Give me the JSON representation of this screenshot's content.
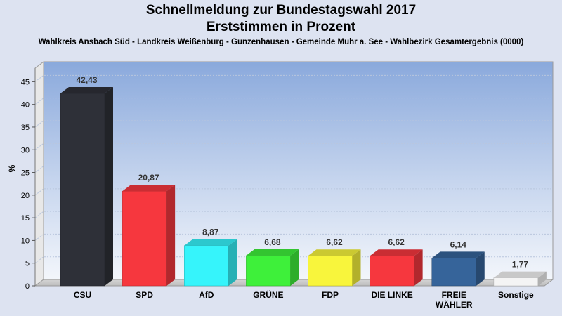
{
  "title": "Schnellmeldung zur Bundestagswahl 2017",
  "title_line2": "Erststimmen in Prozent",
  "subtitle": "Wahlkreis Ansbach Süd - Landkreis Weißenburg - Gunzenhausen - Gemeinde Muhr a. See - Wahlbezirk Gesamtergebnis (0000)",
  "chart_data": {
    "type": "bar",
    "title": "Schnellmeldung zur Bundestagswahl 2017",
    "subtitle": "Erststimmen in Prozent",
    "ylabel": "%",
    "xlabel": "",
    "ylim": [
      0,
      48
    ],
    "yticks": [
      0,
      5,
      10,
      15,
      20,
      25,
      30,
      35,
      40,
      45
    ],
    "grid": true,
    "categories": [
      {
        "lines": [
          "CSU"
        ]
      },
      {
        "lines": [
          "SPD"
        ]
      },
      {
        "lines": [
          "AfD"
        ]
      },
      {
        "lines": [
          "GRÜNE"
        ]
      },
      {
        "lines": [
          "FDP"
        ]
      },
      {
        "lines": [
          "DIE LINKE"
        ]
      },
      {
        "lines": [
          "FREIE",
          "WÄHLER"
        ]
      },
      {
        "lines": [
          "Sonstige"
        ]
      }
    ],
    "values": [
      42.43,
      20.87,
      8.87,
      6.68,
      6.62,
      6.62,
      6.14,
      1.77
    ],
    "value_labels": [
      "42,43",
      "20,87",
      "8,87",
      "6,68",
      "6,62",
      "6,62",
      "6,14",
      "1,77"
    ],
    "colors": [
      "#2e3038",
      "#f6373e",
      "#36f4fb",
      "#3ef03a",
      "#f8f53c",
      "#f6373e",
      "#36649a",
      "#f4f4f4"
    ]
  }
}
